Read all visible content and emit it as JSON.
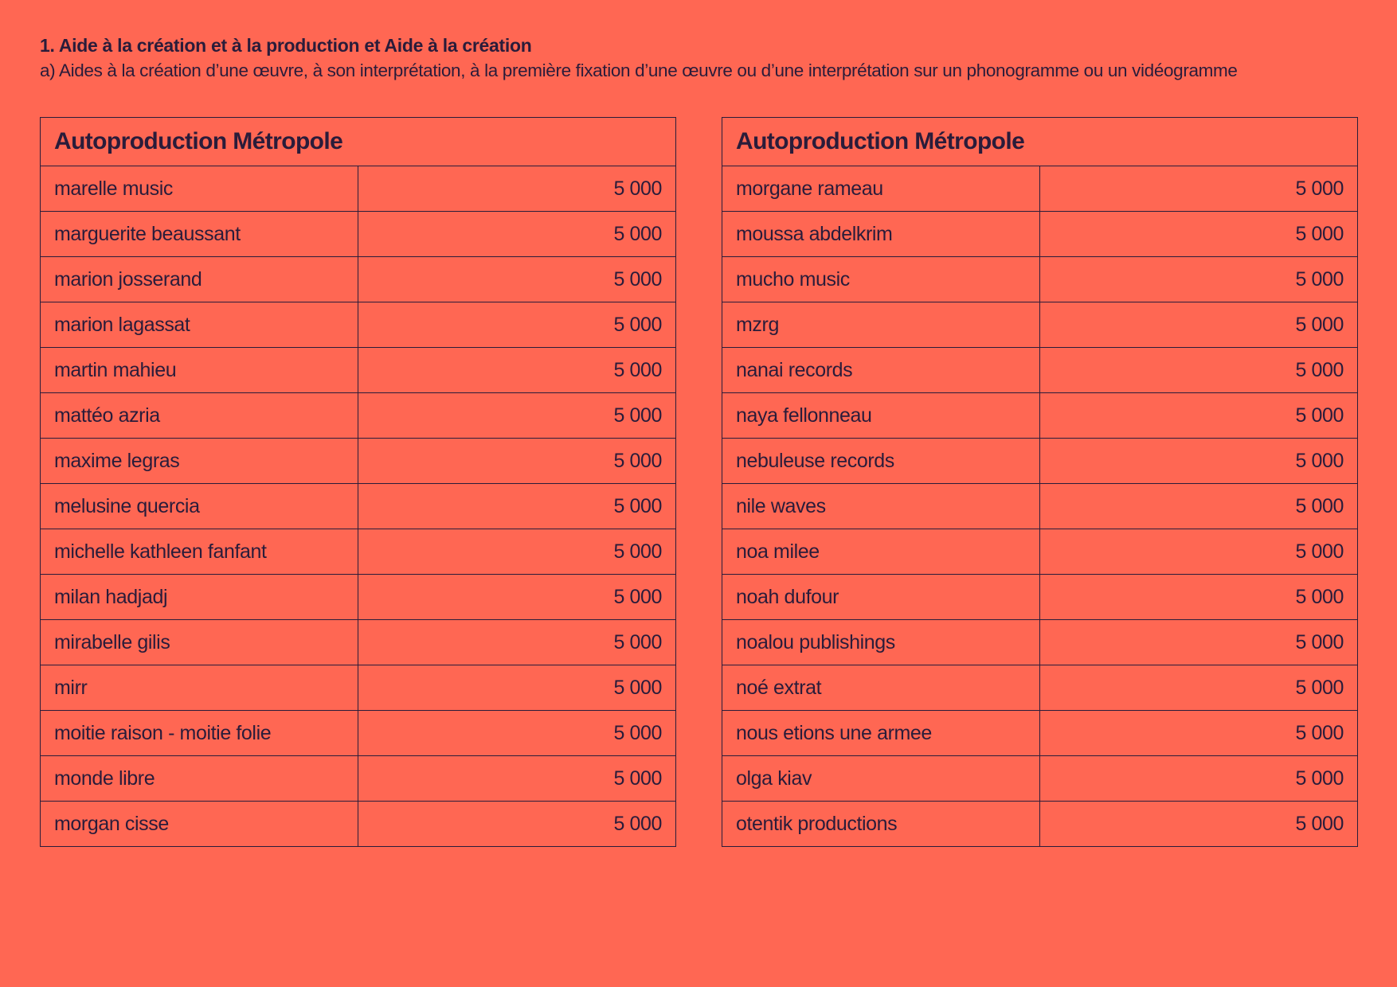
{
  "heading": "1. Aide à la création et à la production et Aide à la création",
  "subheading": "a) Aides à la création d’une œuvre, à son interprétation, à la première fixation d’une œuvre ou d’une interprétation sur un phonogramme ou un vidéogramme",
  "tables": [
    {
      "title": "Autoproduction Métropole",
      "rows": [
        {
          "name": "marelle music",
          "amount": "5 000"
        },
        {
          "name": "marguerite beaussant",
          "amount": "5 000"
        },
        {
          "name": "marion josserand",
          "amount": "5 000"
        },
        {
          "name": "marion lagassat",
          "amount": "5 000"
        },
        {
          "name": "martin mahieu",
          "amount": "5 000"
        },
        {
          "name": "mattéo azria",
          "amount": "5 000"
        },
        {
          "name": "maxime legras",
          "amount": "5 000"
        },
        {
          "name": "melusine quercia",
          "amount": "5 000"
        },
        {
          "name": "michelle kathleen fanfant",
          "amount": "5 000"
        },
        {
          "name": "milan hadjadj",
          "amount": "5 000"
        },
        {
          "name": "mirabelle gilis",
          "amount": "5 000"
        },
        {
          "name": "mirr",
          "amount": "5 000"
        },
        {
          "name": "moitie raison - moitie folie",
          "amount": "5 000"
        },
        {
          "name": "monde libre",
          "amount": "5 000"
        },
        {
          "name": "morgan cisse",
          "amount": "5 000"
        }
      ]
    },
    {
      "title": "Autoproduction Métropole",
      "rows": [
        {
          "name": "morgane rameau",
          "amount": "5 000"
        },
        {
          "name": "moussa abdelkrim",
          "amount": "5 000"
        },
        {
          "name": "mucho music",
          "amount": "5 000"
        },
        {
          "name": "mzrg",
          "amount": "5 000"
        },
        {
          "name": "nanai records",
          "amount": "5 000"
        },
        {
          "name": "naya fellonneau",
          "amount": "5 000"
        },
        {
          "name": "nebuleuse records",
          "amount": "5 000"
        },
        {
          "name": "nile waves",
          "amount": "5 000"
        },
        {
          "name": "noa milee",
          "amount": "5 000"
        },
        {
          "name": "noah dufour",
          "amount": "5 000"
        },
        {
          "name": "noalou publishings",
          "amount": "5 000"
        },
        {
          "name": "noé extrat",
          "amount": "5 000"
        },
        {
          "name": "nous etions une armee",
          "amount": "5 000"
        },
        {
          "name": "olga kiav",
          "amount": "5 000"
        },
        {
          "name": "otentik productions",
          "amount": "5 000"
        }
      ]
    }
  ]
}
